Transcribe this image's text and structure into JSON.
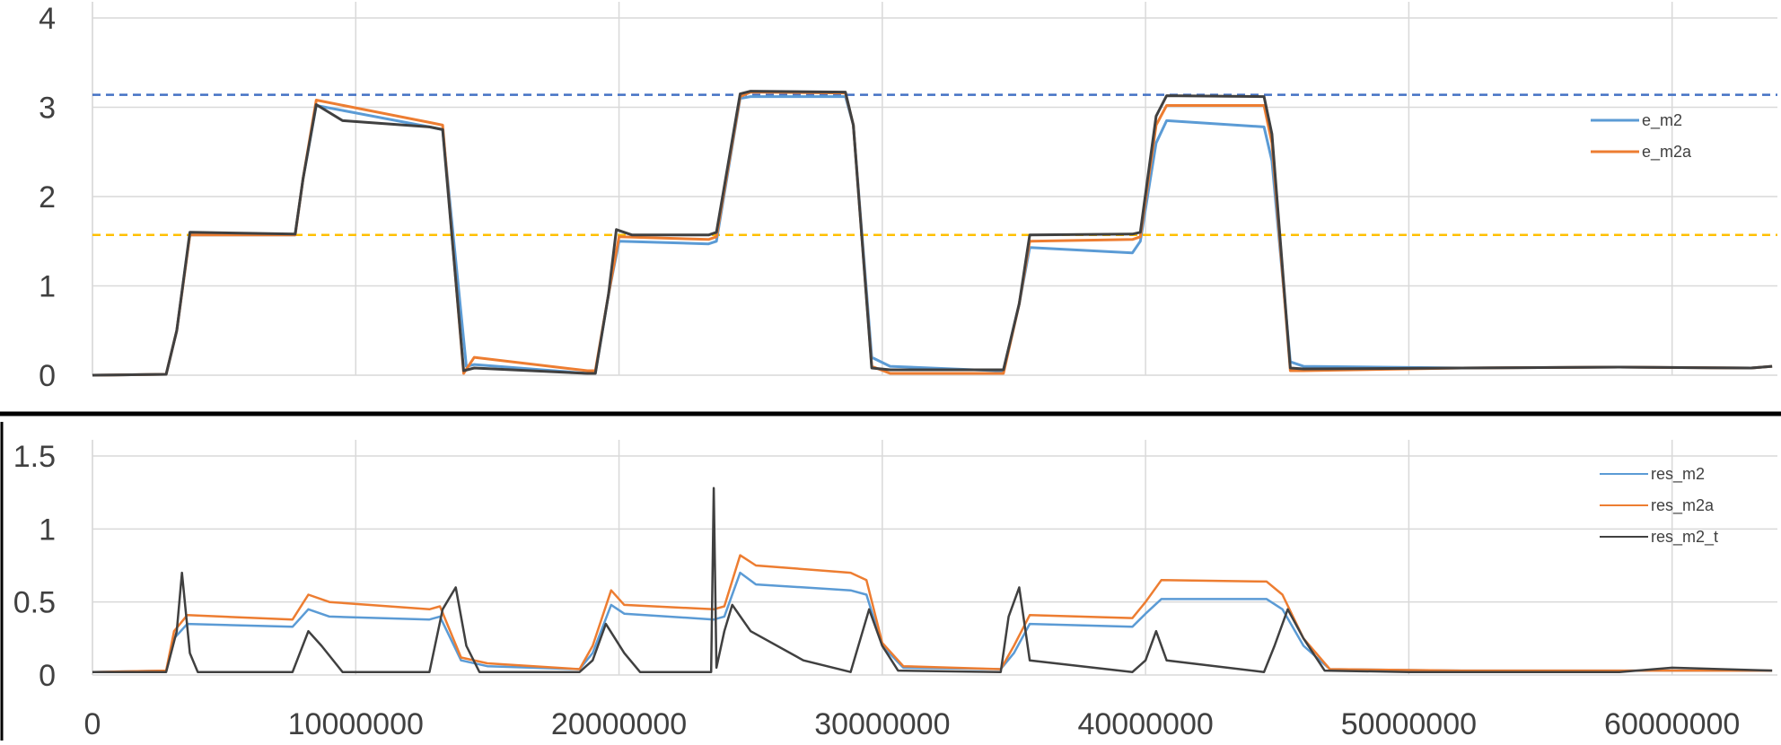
{
  "chart_data": [
    {
      "type": "line",
      "title": "",
      "xlabel": "",
      "ylabel": "",
      "xlim": [
        0,
        64000000
      ],
      "ylim": [
        0,
        4
      ],
      "y_ticks": [
        "0",
        "1",
        "2",
        "3",
        "4"
      ],
      "grid": true,
      "legend_position": "right",
      "reference_lines": [
        {
          "y": 3.14,
          "color": "#4472C4",
          "style": "dashed"
        },
        {
          "y": 1.57,
          "color": "#FFC000",
          "style": "dashed"
        }
      ],
      "series": [
        {
          "name": "e_m2",
          "color": "#5B9BD5",
          "x": [
            0,
            2800000,
            3200000,
            3700000,
            7700000,
            8000000,
            8500000,
            12800000,
            13300000,
            14200000,
            14500000,
            18800000,
            19100000,
            19600000,
            20000000,
            23400000,
            23700000,
            24600000,
            25000000,
            28600000,
            28900000,
            29600000,
            30300000,
            34300000,
            34600000,
            35200000,
            35600000,
            39500000,
            39800000,
            40400000,
            40800000,
            44500000,
            44800000,
            45500000,
            46000000,
            52000000,
            58000000,
            63000000,
            63800000
          ],
          "y": [
            0,
            0.01,
            0.5,
            1.57,
            1.57,
            2.2,
            3.02,
            2.78,
            2.75,
            0.1,
            0.12,
            0.02,
            0.02,
            0.9,
            1.5,
            1.47,
            1.5,
            3.1,
            3.12,
            3.12,
            2.8,
            0.2,
            0.1,
            0.05,
            0.05,
            0.8,
            1.43,
            1.37,
            1.5,
            2.6,
            2.85,
            2.78,
            2.4,
            0.15,
            0.1,
            0.08,
            0.09,
            0.08,
            0.1
          ]
        },
        {
          "name": "e_m2a",
          "color": "#ED7D31",
          "x": [
            0,
            2800000,
            3200000,
            3700000,
            7700000,
            8000000,
            8500000,
            12800000,
            13300000,
            14100000,
            14500000,
            18800000,
            19100000,
            19600000,
            20000000,
            23400000,
            23700000,
            24600000,
            25000000,
            28600000,
            28900000,
            29600000,
            30300000,
            34300000,
            34600000,
            35200000,
            35600000,
            39500000,
            39800000,
            40400000,
            40800000,
            44500000,
            44800000,
            45500000,
            46000000,
            52000000,
            58000000,
            63000000,
            63800000
          ],
          "y": [
            0,
            0.01,
            0.5,
            1.57,
            1.57,
            2.2,
            3.08,
            2.83,
            2.8,
            0.02,
            0.2,
            0.05,
            0.05,
            0.9,
            1.55,
            1.52,
            1.55,
            3.12,
            3.17,
            3.16,
            2.8,
            0.1,
            0.02,
            0.02,
            0.02,
            0.8,
            1.5,
            1.52,
            1.55,
            2.8,
            3.02,
            3.02,
            2.6,
            0.05,
            0.05,
            0.08,
            0.09,
            0.08,
            0.1
          ]
        },
        {
          "name": "",
          "color": "#404040",
          "x": [
            0,
            2800000,
            3200000,
            3700000,
            7700000,
            8000000,
            8500000,
            9500000,
            12800000,
            13300000,
            14100000,
            14500000,
            18800000,
            19100000,
            19600000,
            19900000,
            20500000,
            23400000,
            23700000,
            24600000,
            25000000,
            28600000,
            28900000,
            29600000,
            30300000,
            34300000,
            34600000,
            35200000,
            35600000,
            39500000,
            39800000,
            40400000,
            40800000,
            44500000,
            44800000,
            45500000,
            46000000,
            52000000,
            58000000,
            63000000,
            63800000
          ],
          "y": [
            0,
            0.01,
            0.5,
            1.6,
            1.58,
            2.2,
            3.03,
            2.85,
            2.78,
            2.75,
            0.05,
            0.08,
            0.02,
            0.02,
            0.9,
            1.63,
            1.57,
            1.57,
            1.6,
            3.15,
            3.18,
            3.17,
            2.8,
            0.08,
            0.06,
            0.06,
            0.06,
            0.8,
            1.57,
            1.58,
            1.6,
            2.9,
            3.13,
            3.12,
            2.7,
            0.08,
            0.07,
            0.08,
            0.09,
            0.08,
            0.1
          ]
        }
      ]
    },
    {
      "type": "line",
      "title": "",
      "xlabel": "",
      "ylabel": "",
      "xlim": [
        0,
        64000000
      ],
      "ylim": [
        0,
        1.5
      ],
      "x_ticks": [
        "0",
        "10000000",
        "20000000",
        "30000000",
        "40000000",
        "50000000",
        "60000000"
      ],
      "y_ticks": [
        "0",
        "0.5",
        "1",
        "1.5"
      ],
      "grid": true,
      "legend_position": "top-right",
      "series": [
        {
          "name": "res_m2",
          "color": "#5B9BD5",
          "x": [
            0,
            2800000,
            3100000,
            3600000,
            7600000,
            8200000,
            9000000,
            12800000,
            13200000,
            14000000,
            15000000,
            18500000,
            19000000,
            19700000,
            20200000,
            23600000,
            24000000,
            24600000,
            25200000,
            28800000,
            29400000,
            30000000,
            30800000,
            34500000,
            35000000,
            35600000,
            39500000,
            40000000,
            40600000,
            44600000,
            45200000,
            46000000,
            47000000,
            52000000,
            58000000,
            63800000
          ],
          "y": [
            0.02,
            0.03,
            0.25,
            0.35,
            0.33,
            0.45,
            0.4,
            0.38,
            0.4,
            0.1,
            0.06,
            0.04,
            0.15,
            0.48,
            0.42,
            0.38,
            0.4,
            0.7,
            0.62,
            0.58,
            0.55,
            0.2,
            0.05,
            0.04,
            0.15,
            0.35,
            0.33,
            0.42,
            0.52,
            0.52,
            0.45,
            0.2,
            0.04,
            0.03,
            0.03,
            0.03
          ]
        },
        {
          "name": "res_m2a",
          "color": "#ED7D31",
          "x": [
            0,
            2800000,
            3100000,
            3600000,
            7600000,
            8200000,
            9000000,
            12800000,
            13200000,
            14000000,
            15000000,
            18500000,
            19000000,
            19700000,
            20200000,
            23600000,
            24000000,
            24600000,
            25200000,
            28800000,
            29400000,
            30000000,
            30800000,
            34500000,
            35000000,
            35600000,
            39500000,
            40000000,
            40600000,
            44600000,
            45200000,
            46000000,
            47000000,
            52000000,
            58000000,
            63800000
          ],
          "y": [
            0.02,
            0.03,
            0.3,
            0.41,
            0.38,
            0.55,
            0.5,
            0.45,
            0.47,
            0.12,
            0.08,
            0.04,
            0.2,
            0.58,
            0.48,
            0.45,
            0.47,
            0.82,
            0.75,
            0.7,
            0.65,
            0.22,
            0.06,
            0.04,
            0.2,
            0.41,
            0.39,
            0.5,
            0.65,
            0.64,
            0.55,
            0.25,
            0.04,
            0.03,
            0.03,
            0.03
          ]
        },
        {
          "name": "res_m2_t",
          "color": "#404040",
          "x": [
            0,
            2800000,
            3200000,
            3400000,
            3700000,
            4000000,
            7600000,
            8200000,
            8700000,
            9500000,
            12800000,
            13300000,
            13800000,
            14200000,
            14700000,
            18500000,
            19000000,
            19500000,
            20200000,
            20800000,
            23500000,
            23600000,
            23700000,
            24000000,
            24300000,
            25000000,
            27000000,
            28800000,
            29500000,
            30000000,
            30600000,
            34500000,
            34800000,
            35200000,
            35600000,
            39500000,
            40000000,
            40400000,
            40800000,
            44500000,
            44900000,
            45400000,
            46000000,
            46800000,
            50000000,
            54000000,
            58000000,
            60000000,
            63800000
          ],
          "y": [
            0.02,
            0.02,
            0.3,
            0.7,
            0.15,
            0.02,
            0.02,
            0.3,
            0.2,
            0.02,
            0.02,
            0.45,
            0.6,
            0.2,
            0.02,
            0.02,
            0.1,
            0.35,
            0.15,
            0.02,
            0.02,
            1.28,
            0.05,
            0.3,
            0.48,
            0.3,
            0.1,
            0.02,
            0.45,
            0.2,
            0.03,
            0.02,
            0.4,
            0.6,
            0.1,
            0.02,
            0.1,
            0.3,
            0.1,
            0.02,
            0.2,
            0.45,
            0.25,
            0.03,
            0.02,
            0.02,
            0.02,
            0.05,
            0.03
          ]
        }
      ]
    }
  ]
}
